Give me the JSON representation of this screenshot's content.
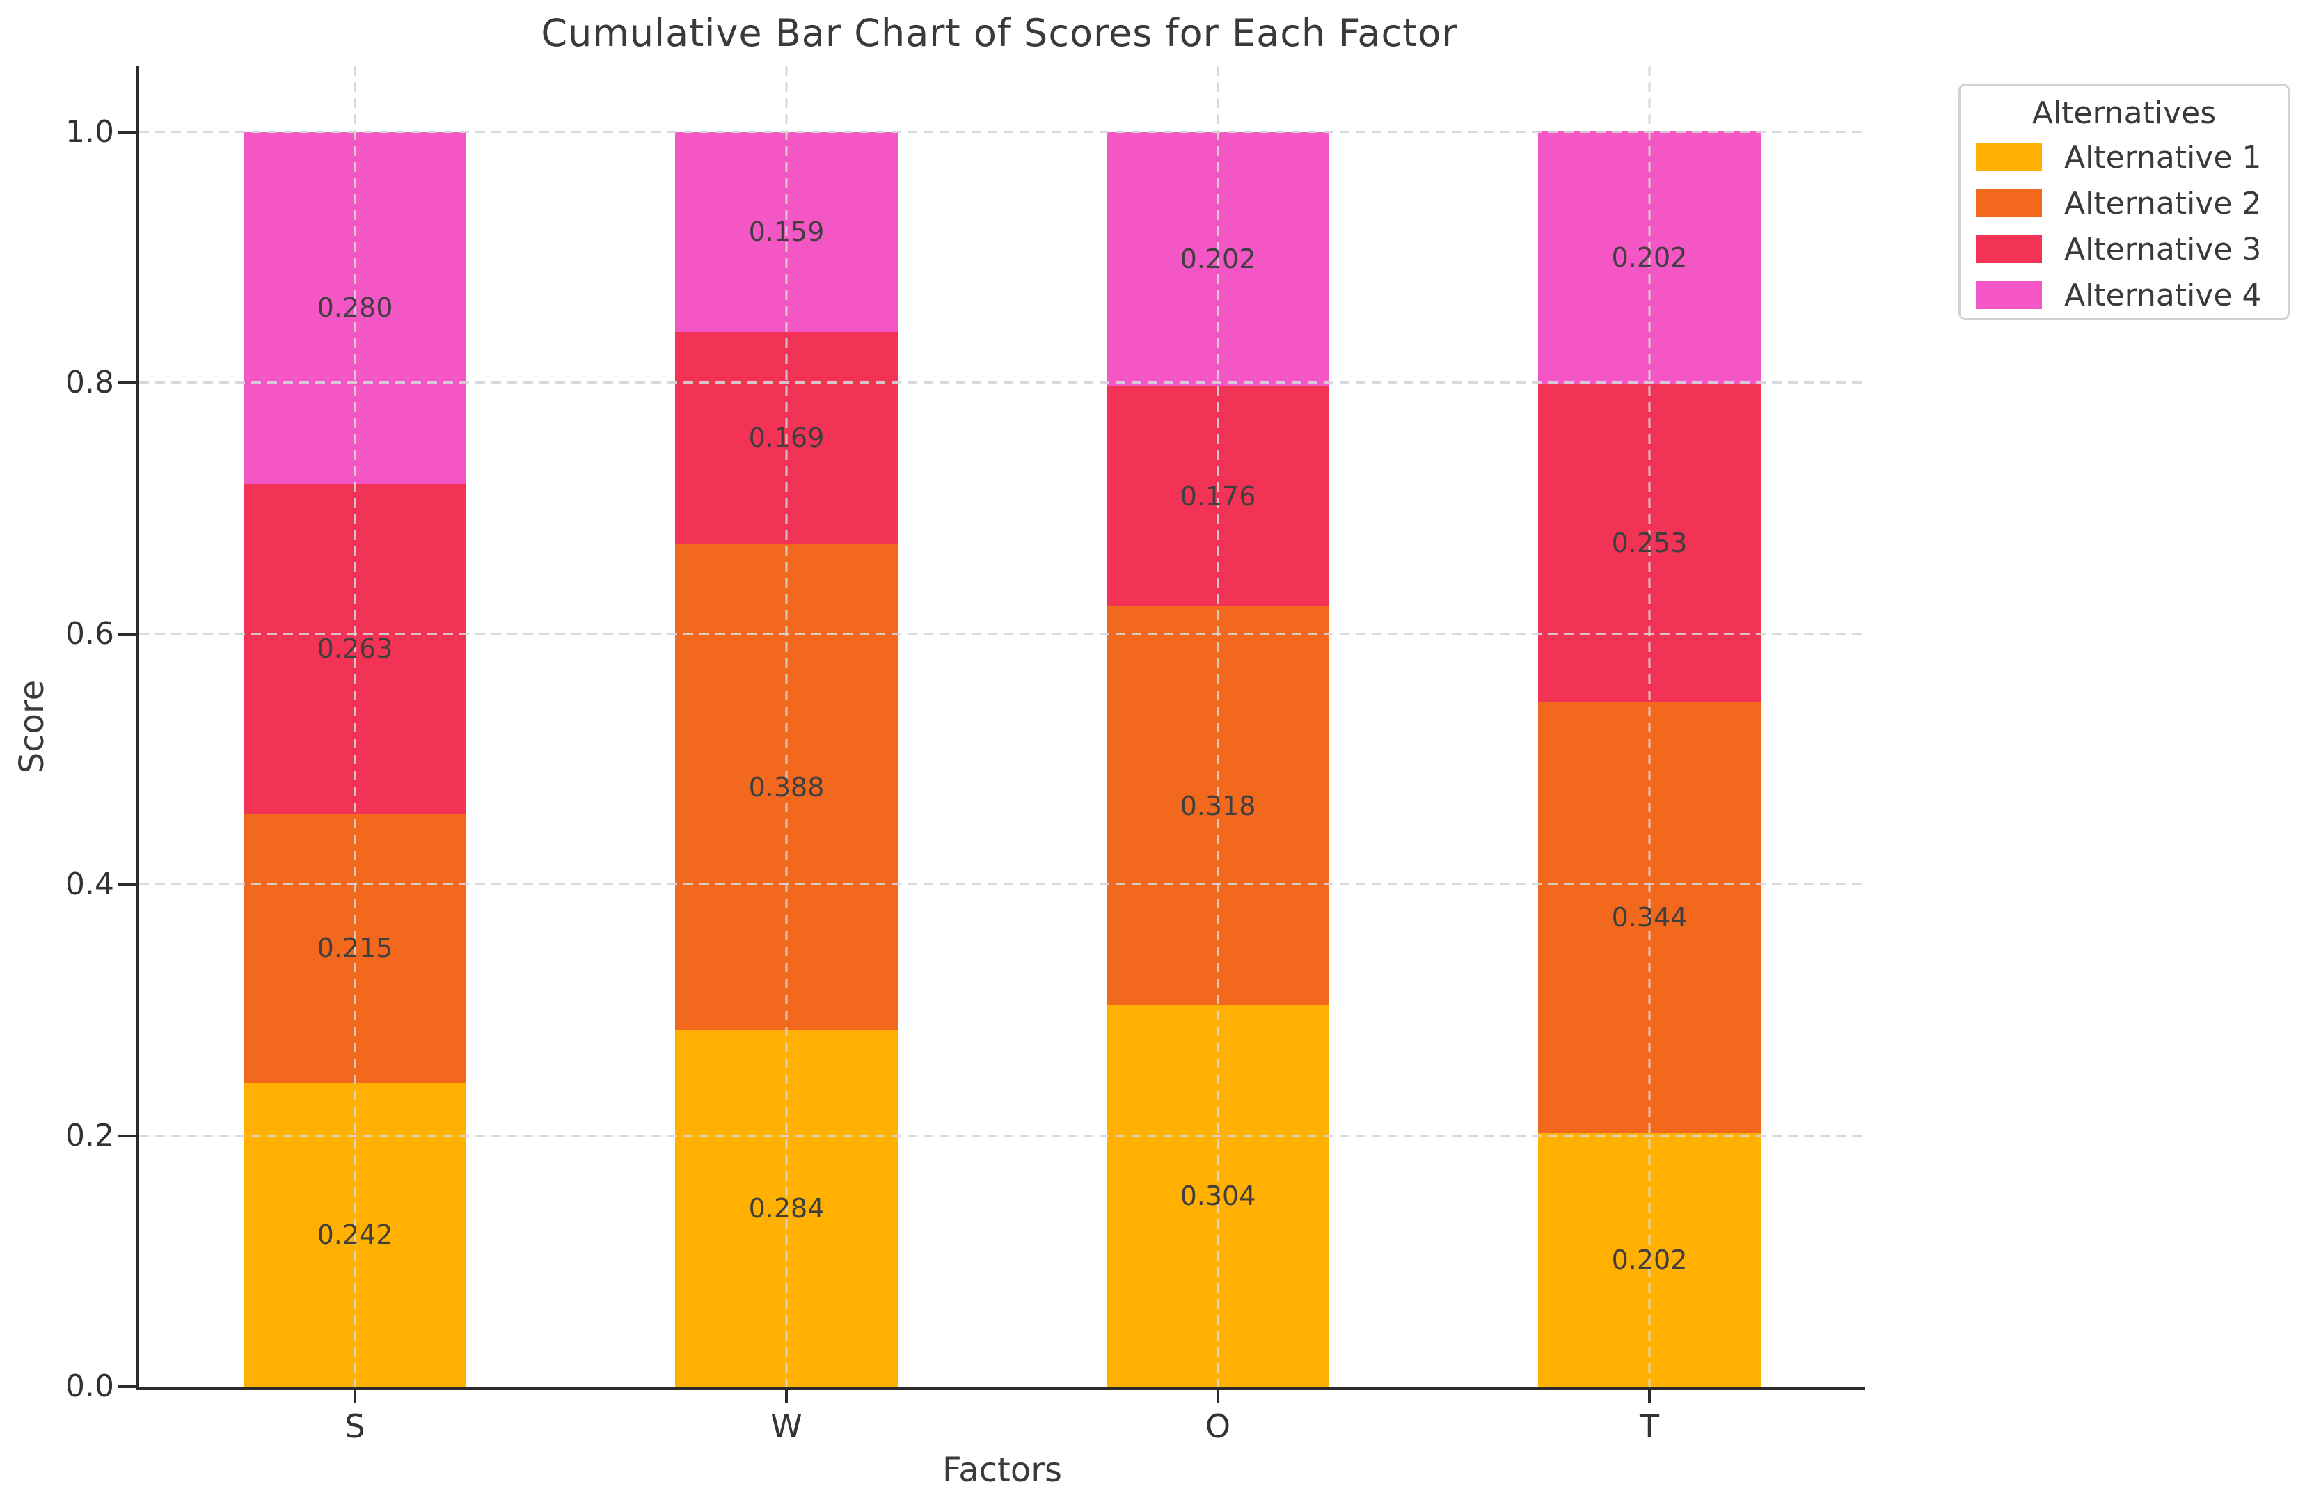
{
  "chart_data": {
    "type": "bar",
    "stacked": true,
    "title": "Cumulative Bar Chart of Scores for Each Factor",
    "xlabel": "Factors",
    "ylabel": "Score",
    "categories": [
      "S",
      "W",
      "O",
      "T"
    ],
    "series": [
      {
        "name": "Alternative 1",
        "color": "#FFB000",
        "values": [
          0.242,
          0.284,
          0.304,
          0.202
        ]
      },
      {
        "name": "Alternative 2",
        "color": "#F2691E",
        "values": [
          0.215,
          0.388,
          0.318,
          0.344
        ]
      },
      {
        "name": "Alternative 3",
        "color": "#F23355",
        "values": [
          0.263,
          0.169,
          0.176,
          0.253
        ]
      },
      {
        "name": "Alternative 4",
        "color": "#F556C5",
        "values": [
          0.28,
          0.159,
          0.202,
          0.202
        ]
      }
    ],
    "bar_labels": {
      "S": [
        "0.242",
        "0.215",
        "0.263",
        "0.280"
      ],
      "W": [
        "0.284",
        "0.388",
        "0.169",
        "0.159"
      ],
      "O": [
        "0.304",
        "0.318",
        "0.176",
        "0.202"
      ],
      "T": [
        "0.202",
        "0.344",
        "0.253",
        "0.202"
      ]
    },
    "y_ticks": [
      "0.0",
      "0.2",
      "0.4",
      "0.6",
      "0.8",
      "1.0"
    ],
    "ylim": [
      0.0,
      1.0
    ],
    "grid": true,
    "grid_style": "dashed",
    "legend": {
      "title": "Alternatives",
      "position": "upper right",
      "items": [
        "Alternative 1",
        "Alternative 2",
        "Alternative 3",
        "Alternative 4"
      ]
    }
  }
}
